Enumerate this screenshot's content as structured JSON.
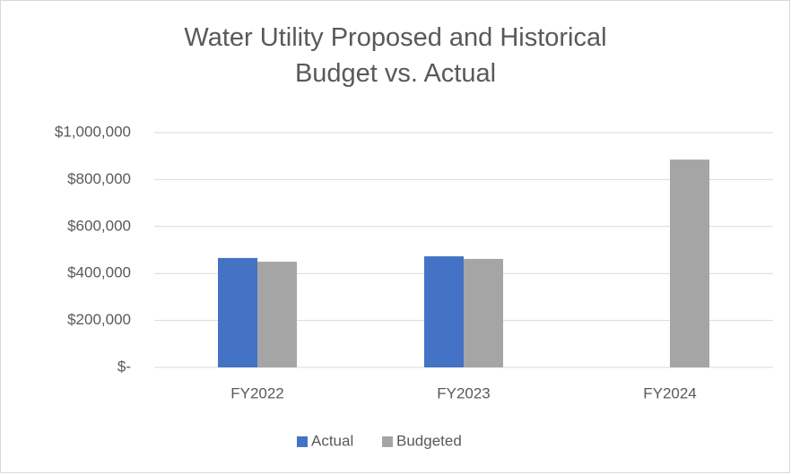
{
  "chart_data": {
    "type": "bar",
    "title": "Water Utility Proposed and Historical Budget vs. Actual",
    "categories": [
      "FY2022",
      "FY2023",
      "FY2024"
    ],
    "series": [
      {
        "name": "Actual",
        "color": "#4472c4",
        "values": [
          466000,
          473000,
          null
        ]
      },
      {
        "name": "Budgeted",
        "color": "#a5a5a5",
        "values": [
          450000,
          462000,
          885000
        ]
      }
    ],
    "ylim": [
      0,
      1000000
    ],
    "yticks": [
      {
        "value": 0,
        "label": "$-"
      },
      {
        "value": 200000,
        "label": "$200,000"
      },
      {
        "value": 400000,
        "label": "$400,000"
      },
      {
        "value": 600000,
        "label": "$600,000"
      },
      {
        "value": 800000,
        "label": "$800,000"
      },
      {
        "value": 1000000,
        "label": "$1,000,000"
      }
    ],
    "grid": true,
    "legend": "bottom"
  }
}
